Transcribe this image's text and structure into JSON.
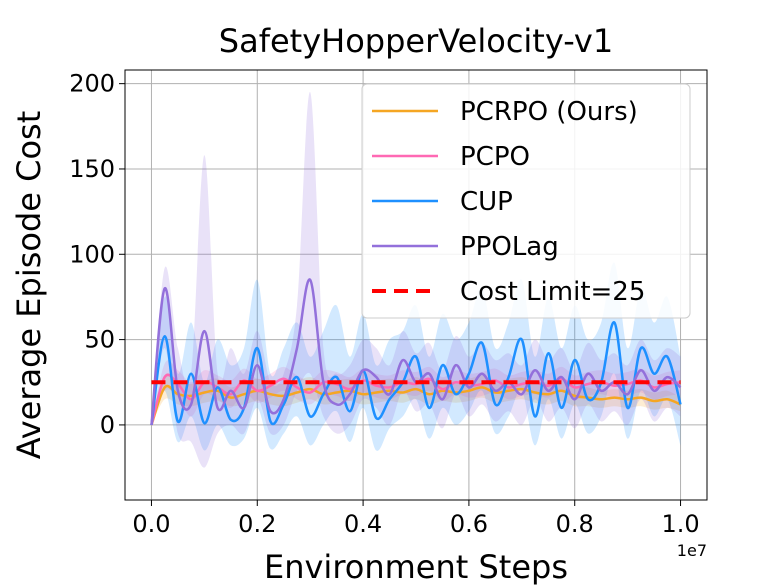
{
  "chart_data": {
    "type": "line",
    "title": "SafetyHopperVelocity-v1",
    "xlabel": "Environment Steps",
    "ylabel": "Average Episode Cost",
    "x_offset_label": "1e7",
    "xlim": [
      -0.05,
      1.05
    ],
    "ylim": [
      -44,
      208
    ],
    "x_ticks": [
      0.0,
      0.2,
      0.4,
      0.6,
      0.8,
      1.0
    ],
    "x_tick_labels": [
      "0.0",
      "0.2",
      "0.4",
      "0.6",
      "0.8",
      "1.0"
    ],
    "y_ticks": [
      0,
      50,
      100,
      150,
      200
    ],
    "y_tick_labels": [
      "0",
      "50",
      "100",
      "150",
      "200"
    ],
    "grid": true,
    "legend_position": "top-right",
    "x": [
      0.0,
      0.025,
      0.05,
      0.075,
      0.1,
      0.125,
      0.15,
      0.175,
      0.2,
      0.225,
      0.25,
      0.275,
      0.3,
      0.325,
      0.35,
      0.375,
      0.4,
      0.425,
      0.45,
      0.475,
      0.5,
      0.525,
      0.55,
      0.575,
      0.6,
      0.625,
      0.65,
      0.675,
      0.7,
      0.725,
      0.75,
      0.775,
      0.8,
      0.825,
      0.85,
      0.875,
      0.9,
      0.925,
      0.95,
      0.975,
      1.0
    ],
    "series": [
      {
        "name": "PCRPO (Ours)",
        "color": "#f5a623",
        "values": [
          0,
          22,
          18,
          17,
          19,
          20,
          16,
          18,
          20,
          18,
          17,
          19,
          21,
          18,
          19,
          20,
          18,
          19,
          20,
          19,
          21,
          18,
          20,
          19,
          20,
          22,
          19,
          20,
          21,
          19,
          18,
          20,
          17,
          16,
          15,
          16,
          15,
          16,
          14,
          15,
          12
        ],
        "band_low": [
          0,
          15,
          12,
          11,
          13,
          14,
          11,
          12,
          14,
          12,
          11,
          13,
          15,
          12,
          13,
          14,
          12,
          13,
          14,
          13,
          15,
          12,
          14,
          13,
          14,
          16,
          13,
          14,
          15,
          13,
          12,
          14,
          11,
          11,
          10,
          11,
          10,
          11,
          9,
          10,
          8
        ],
        "band_high": [
          0,
          29,
          25,
          24,
          26,
          27,
          22,
          25,
          27,
          25,
          24,
          26,
          28,
          25,
          26,
          27,
          25,
          26,
          27,
          26,
          28,
          25,
          27,
          26,
          27,
          29,
          26,
          27,
          28,
          26,
          25,
          27,
          23,
          22,
          20,
          21,
          20,
          21,
          19,
          20,
          16
        ]
      },
      {
        "name": "PCPO",
        "color": "#ff69b4",
        "values": [
          0,
          28,
          24,
          15,
          25,
          22,
          18,
          26,
          20,
          23,
          27,
          22,
          19,
          25,
          24,
          21,
          26,
          23,
          22,
          25,
          24,
          27,
          21,
          25,
          23,
          24,
          26,
          22,
          24,
          25,
          23,
          27,
          22,
          24,
          25,
          23,
          24,
          26,
          22,
          24,
          25
        ],
        "band_low": [
          0,
          20,
          16,
          5,
          18,
          15,
          10,
          19,
          13,
          16,
          20,
          15,
          12,
          18,
          17,
          14,
          19,
          16,
          15,
          18,
          17,
          20,
          14,
          18,
          16,
          17,
          19,
          15,
          17,
          18,
          16,
          20,
          15,
          17,
          18,
          16,
          17,
          19,
          15,
          17,
          18
        ],
        "band_high": [
          0,
          36,
          32,
          25,
          32,
          29,
          26,
          33,
          27,
          30,
          34,
          29,
          26,
          32,
          31,
          28,
          33,
          30,
          29,
          32,
          31,
          34,
          28,
          32,
          30,
          31,
          33,
          29,
          31,
          32,
          30,
          34,
          29,
          31,
          32,
          30,
          31,
          33,
          29,
          31,
          32
        ]
      },
      {
        "name": "CUP",
        "color": "#1e90ff",
        "values": [
          0,
          52,
          2,
          30,
          1,
          22,
          3,
          10,
          45,
          2,
          12,
          28,
          5,
          18,
          28,
          8,
          32,
          4,
          15,
          25,
          40,
          10,
          35,
          18,
          30,
          48,
          12,
          28,
          50,
          5,
          42,
          10,
          38,
          15,
          25,
          60,
          10,
          45,
          30,
          40,
          12
        ],
        "band_low": [
          0,
          20,
          -10,
          5,
          -15,
          0,
          -12,
          -8,
          10,
          -14,
          -5,
          5,
          -12,
          0,
          8,
          -10,
          10,
          -15,
          -2,
          5,
          15,
          -8,
          10,
          0,
          8,
          20,
          -5,
          5,
          20,
          -12,
          15,
          -8,
          12,
          -5,
          5,
          30,
          -8,
          20,
          5,
          15,
          -12
        ],
        "band_high": [
          0,
          75,
          30,
          60,
          25,
          50,
          35,
          45,
          85,
          30,
          45,
          60,
          40,
          55,
          70,
          40,
          65,
          35,
          50,
          55,
          70,
          40,
          65,
          50,
          60,
          80,
          45,
          60,
          85,
          40,
          75,
          45,
          70,
          50,
          60,
          95,
          45,
          80,
          60,
          75,
          40
        ]
      },
      {
        "name": "PPOLag",
        "color": "#9370db",
        "values": [
          0,
          80,
          20,
          12,
          55,
          10,
          20,
          10,
          35,
          8,
          15,
          45,
          85,
          25,
          12,
          18,
          32,
          28,
          18,
          38,
          25,
          30,
          15,
          35,
          22,
          30,
          20,
          25,
          18,
          32,
          20,
          28,
          15,
          30,
          20,
          25,
          18,
          32,
          20,
          28,
          22
        ],
        "band_low": [
          0,
          45,
          -5,
          -10,
          -25,
          -5,
          0,
          -5,
          15,
          -5,
          0,
          20,
          30,
          5,
          -5,
          0,
          15,
          10,
          0,
          20,
          8,
          12,
          -2,
          18,
          5,
          12,
          2,
          8,
          0,
          15,
          2,
          10,
          -2,
          12,
          2,
          8,
          0,
          15,
          2,
          10,
          5
        ],
        "band_high": [
          0,
          92,
          45,
          30,
          158,
          30,
          45,
          30,
          55,
          25,
          30,
          70,
          195,
          45,
          30,
          35,
          50,
          45,
          35,
          55,
          42,
          48,
          32,
          52,
          40,
          48,
          38,
          42,
          35,
          50,
          38,
          45,
          32,
          48,
          38,
          42,
          35,
          50,
          38,
          45,
          40
        ]
      }
    ],
    "reference_lines": [
      {
        "name": "Cost Limit=25",
        "y": 25,
        "color": "#ff0000",
        "style": "dashed"
      }
    ]
  }
}
